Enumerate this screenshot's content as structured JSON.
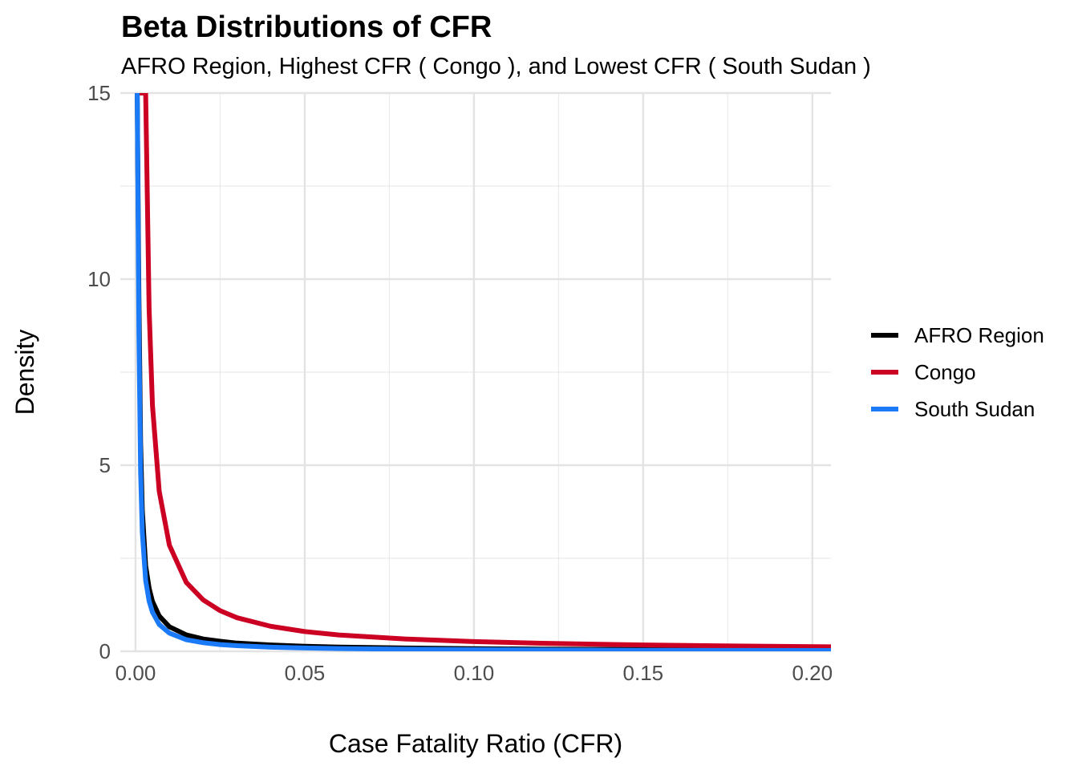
{
  "chart_data": {
    "type": "line",
    "title": "Beta Distributions of CFR",
    "subtitle": "AFRO Region, Highest CFR ( Congo ), and Lowest CFR ( South Sudan )",
    "xlabel": "Case Fatality Ratio (CFR)",
    "ylabel": "Density",
    "xlim": [
      -0.0045,
      0.2055
    ],
    "ylim": [
      0,
      15
    ],
    "x_ticks": [
      0.0,
      0.05,
      0.1,
      0.15,
      0.2
    ],
    "x_tick_labels": [
      "0.00",
      "0.05",
      "0.10",
      "0.15",
      "0.20"
    ],
    "y_ticks": [
      0,
      5,
      10,
      15
    ],
    "y_tick_labels": [
      "0",
      "5",
      "10",
      "15"
    ],
    "grid": true,
    "legend_position": "right",
    "x": [
      0.0005,
      0.001,
      0.0015,
      0.002,
      0.003,
      0.004,
      0.005,
      0.007,
      0.01,
      0.015,
      0.02,
      0.025,
      0.03,
      0.04,
      0.05,
      0.06,
      0.08,
      0.1,
      0.12,
      0.15,
      0.18,
      0.2055
    ],
    "series": [
      {
        "name": "AFRO Region",
        "color": "#000000",
        "values": [
          15,
          9.5,
          5.6,
          3.8,
          2.3,
          1.7,
          1.34,
          0.95,
          0.66,
          0.44,
          0.33,
          0.27,
          0.22,
          0.17,
          0.135,
          0.115,
          0.088,
          0.07,
          0.058,
          0.047,
          0.039,
          0.034
        ]
      },
      {
        "name": "Congo",
        "color": "#cc0022",
        "values": [
          15,
          15,
          15,
          15,
          15,
          9.2,
          6.6,
          4.3,
          2.85,
          1.85,
          1.38,
          1.09,
          0.9,
          0.67,
          0.53,
          0.44,
          0.33,
          0.26,
          0.215,
          0.17,
          0.14,
          0.12
        ]
      },
      {
        "name": "South Sudan",
        "color": "#1a7af8",
        "values": [
          15,
          8.5,
          4.8,
          3.2,
          1.9,
          1.35,
          1.05,
          0.72,
          0.49,
          0.31,
          0.23,
          0.18,
          0.15,
          0.11,
          0.088,
          0.073,
          0.055,
          0.044,
          0.036,
          0.029,
          0.024,
          0.021
        ]
      }
    ]
  }
}
